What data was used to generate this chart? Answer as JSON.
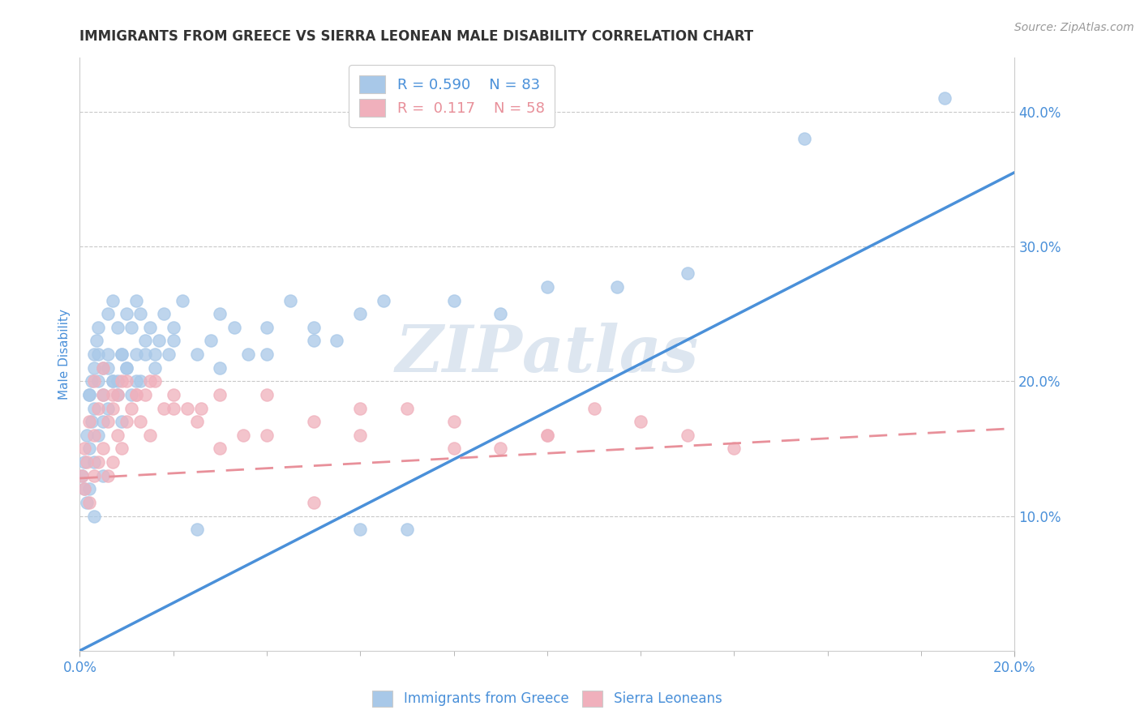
{
  "title": "IMMIGRANTS FROM GREECE VS SIERRA LEONEAN MALE DISABILITY CORRELATION CHART",
  "source": "Source: ZipAtlas.com",
  "ylabel": "Male Disability",
  "legend_r1": "R = 0.590",
  "legend_n1": "N = 83",
  "legend_r2": "R =  0.117",
  "legend_n2": "N = 58",
  "legend_label1": "Immigrants from Greece",
  "legend_label2": "Sierra Leoneans",
  "blue_color": "#a8c8e8",
  "pink_color": "#f0b0bc",
  "blue_line_color": "#4a90d9",
  "pink_line_color": "#e8909a",
  "axis_label_color": "#4a90d9",
  "title_color": "#333333",
  "grid_color": "#bbbbbb",
  "watermark_color": "#dde6f0",
  "xlim": [
    0.0,
    0.2
  ],
  "ylim": [
    0.0,
    0.44
  ],
  "blue_line_x0": 0.0,
  "blue_line_y0": 0.0,
  "blue_line_x1": 0.2,
  "blue_line_y1": 0.355,
  "pink_line_x0": 0.0,
  "pink_line_y0": 0.128,
  "pink_line_x1": 0.2,
  "pink_line_y1": 0.165,
  "blue_scatter_x": [
    0.0005,
    0.001,
    0.001,
    0.0015,
    0.0015,
    0.002,
    0.002,
    0.002,
    0.0025,
    0.0025,
    0.003,
    0.003,
    0.003,
    0.003,
    0.0035,
    0.004,
    0.004,
    0.004,
    0.005,
    0.005,
    0.005,
    0.006,
    0.006,
    0.006,
    0.007,
    0.007,
    0.008,
    0.008,
    0.009,
    0.009,
    0.01,
    0.01,
    0.011,
    0.011,
    0.012,
    0.012,
    0.013,
    0.013,
    0.014,
    0.015,
    0.016,
    0.017,
    0.018,
    0.019,
    0.02,
    0.022,
    0.025,
    0.028,
    0.03,
    0.033,
    0.036,
    0.04,
    0.045,
    0.05,
    0.055,
    0.06,
    0.065,
    0.07,
    0.08,
    0.09,
    0.1,
    0.115,
    0.13,
    0.155,
    0.002,
    0.003,
    0.004,
    0.005,
    0.006,
    0.007,
    0.008,
    0.009,
    0.01,
    0.012,
    0.014,
    0.016,
    0.02,
    0.025,
    0.03,
    0.04,
    0.05,
    0.06,
    0.185
  ],
  "blue_scatter_y": [
    0.13,
    0.14,
    0.12,
    0.16,
    0.11,
    0.19,
    0.15,
    0.12,
    0.2,
    0.17,
    0.22,
    0.18,
    0.14,
    0.1,
    0.23,
    0.24,
    0.2,
    0.16,
    0.21,
    0.17,
    0.13,
    0.25,
    0.22,
    0.18,
    0.26,
    0.2,
    0.24,
    0.19,
    0.22,
    0.17,
    0.25,
    0.21,
    0.24,
    0.19,
    0.26,
    0.22,
    0.25,
    0.2,
    0.23,
    0.24,
    0.22,
    0.23,
    0.25,
    0.22,
    0.24,
    0.26,
    0.09,
    0.23,
    0.25,
    0.24,
    0.22,
    0.24,
    0.26,
    0.24,
    0.23,
    0.25,
    0.26,
    0.09,
    0.26,
    0.25,
    0.27,
    0.27,
    0.28,
    0.38,
    0.19,
    0.21,
    0.22,
    0.19,
    0.21,
    0.2,
    0.2,
    0.22,
    0.21,
    0.2,
    0.22,
    0.21,
    0.23,
    0.22,
    0.21,
    0.22,
    0.23,
    0.09,
    0.41
  ],
  "pink_scatter_x": [
    0.0005,
    0.001,
    0.001,
    0.0015,
    0.002,
    0.002,
    0.003,
    0.003,
    0.004,
    0.004,
    0.005,
    0.005,
    0.006,
    0.006,
    0.007,
    0.007,
    0.008,
    0.008,
    0.009,
    0.01,
    0.01,
    0.011,
    0.012,
    0.013,
    0.014,
    0.015,
    0.016,
    0.018,
    0.02,
    0.023,
    0.026,
    0.03,
    0.035,
    0.04,
    0.05,
    0.06,
    0.07,
    0.08,
    0.09,
    0.1,
    0.11,
    0.12,
    0.13,
    0.14,
    0.003,
    0.005,
    0.007,
    0.009,
    0.012,
    0.015,
    0.02,
    0.025,
    0.03,
    0.04,
    0.05,
    0.06,
    0.08,
    0.1
  ],
  "pink_scatter_y": [
    0.13,
    0.15,
    0.12,
    0.14,
    0.17,
    0.11,
    0.16,
    0.13,
    0.18,
    0.14,
    0.19,
    0.15,
    0.17,
    0.13,
    0.18,
    0.14,
    0.19,
    0.16,
    0.15,
    0.2,
    0.17,
    0.18,
    0.19,
    0.17,
    0.19,
    0.16,
    0.2,
    0.18,
    0.19,
    0.18,
    0.18,
    0.15,
    0.16,
    0.19,
    0.11,
    0.16,
    0.18,
    0.17,
    0.15,
    0.16,
    0.18,
    0.17,
    0.16,
    0.15,
    0.2,
    0.21,
    0.19,
    0.2,
    0.19,
    0.2,
    0.18,
    0.17,
    0.19,
    0.16,
    0.17,
    0.18,
    0.15,
    0.16
  ]
}
